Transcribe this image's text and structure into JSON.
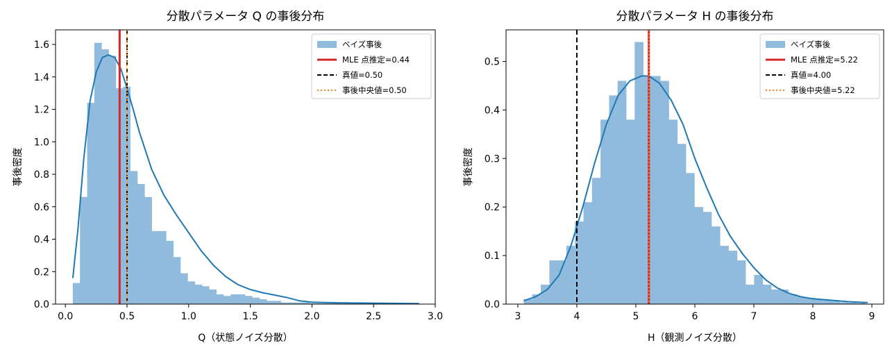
{
  "chart_data": [
    {
      "type": "bar",
      "title": "分散パラメータ Q の事後分布",
      "xlabel": "Q（状態ノイズ分散）",
      "ylabel": "事後密度",
      "xlim": [
        -0.08,
        3.0
      ],
      "ylim": [
        0,
        1.69
      ],
      "xticks": [
        0.0,
        0.5,
        1.0,
        1.5,
        2.0,
        2.5,
        3.0
      ],
      "xtick_labels": [
        "0.0",
        "0.5",
        "1.0",
        "1.5",
        "2.0",
        "2.5",
        "3.0"
      ],
      "yticks": [
        0,
        0.2,
        0.4,
        0.6,
        0.8,
        1.0,
        1.2,
        1.4,
        1.6
      ],
      "ytick_labels": [
        "0.0",
        "0.2",
        "0.4",
        "0.6",
        "0.8",
        "1.0",
        "1.2",
        "1.4",
        "1.6"
      ],
      "legend_position": "top-right",
      "bin_start": 0.06,
      "bin_width": 0.0582,
      "hist_values": [
        0.13,
        0.66,
        1.24,
        1.61,
        1.57,
        1.53,
        1.33,
        1.34,
        0.82,
        0.74,
        0.66,
        0.45,
        0.45,
        0.39,
        0.29,
        0.19,
        0.14,
        0.12,
        0.11,
        0.09,
        0.06,
        0.05,
        0.06,
        0.06,
        0.05,
        0.04,
        0.03,
        0.02,
        0.02,
        0.01,
        0.01,
        0.01,
        0.01,
        0.005,
        0.005,
        0.005,
        0.005,
        0.005,
        0.005,
        0.005,
        0.005,
        0.005,
        0.005,
        0.005,
        0.005,
        0.005,
        0.005,
        0.005
      ],
      "kde": {
        "x": [
          0.06,
          0.1,
          0.15,
          0.2,
          0.25,
          0.3,
          0.35,
          0.4,
          0.45,
          0.5,
          0.55,
          0.6,
          0.7,
          0.8,
          0.9,
          1.0,
          1.1,
          1.2,
          1.3,
          1.4,
          1.5,
          1.6,
          1.7,
          1.8,
          1.9,
          2.0,
          2.2,
          2.5,
          2.87
        ],
        "y": [
          0.16,
          0.45,
          0.9,
          1.25,
          1.43,
          1.52,
          1.535,
          1.52,
          1.45,
          1.33,
          1.2,
          1.06,
          0.83,
          0.67,
          0.55,
          0.44,
          0.33,
          0.24,
          0.17,
          0.12,
          0.09,
          0.07,
          0.055,
          0.04,
          0.02,
          0.012,
          0.008,
          0.006,
          0.003
        ]
      },
      "vlines": {
        "mle": 0.44,
        "true": 0.5,
        "median": 0.5
      },
      "colors": {
        "hist": "#90bbdc",
        "kde": "#1f77b4",
        "mle": "#d62728",
        "true": "#000000",
        "median": "#ff7f0e"
      },
      "legend": [
        "ベイズ事後",
        "MLE 点推定=0.44",
        "真値=0.50",
        "事後中央値=0.50"
      ]
    },
    {
      "type": "bar",
      "title": "分散パラメータ H の事後分布",
      "xlabel": "H（観測ノイズ分散）",
      "ylabel": "事後密度",
      "xlim": [
        2.8,
        9.2
      ],
      "ylim": [
        0,
        0.565
      ],
      "xticks": [
        3,
        4,
        5,
        6,
        7,
        8,
        9
      ],
      "xtick_labels": [
        "3",
        "4",
        "5",
        "6",
        "7",
        "8",
        "9"
      ],
      "yticks": [
        0,
        0.1,
        0.2,
        0.3,
        0.4,
        0.5
      ],
      "ytick_labels": [
        "0.0",
        "0.1",
        "0.2",
        "0.3",
        "0.4",
        "0.5"
      ],
      "legend_position": "top-right",
      "bin_start": 3.1,
      "bin_width": 0.1446,
      "hist_values": [
        0.01,
        0.02,
        0.04,
        0.09,
        0.09,
        0.12,
        0.17,
        0.21,
        0.26,
        0.38,
        0.43,
        0.46,
        0.38,
        0.54,
        0.47,
        0.47,
        0.46,
        0.38,
        0.33,
        0.27,
        0.2,
        0.19,
        0.16,
        0.12,
        0.11,
        0.09,
        0.04,
        0.06,
        0.04,
        0.03,
        0.03,
        0.02,
        0.015,
        0.013,
        0.01,
        0.008,
        0.006,
        0.004,
        0.003,
        0.002
      ],
      "kde": {
        "x": [
          3.1,
          3.3,
          3.5,
          3.7,
          3.9,
          4.1,
          4.3,
          4.5,
          4.7,
          4.9,
          5.1,
          5.22,
          5.4,
          5.6,
          5.8,
          6.0,
          6.2,
          6.4,
          6.6,
          6.8,
          7.0,
          7.2,
          7.4,
          7.6,
          7.8,
          8.0,
          8.3,
          8.6,
          8.93
        ],
        "y": [
          0.007,
          0.015,
          0.03,
          0.06,
          0.12,
          0.2,
          0.29,
          0.37,
          0.43,
          0.46,
          0.47,
          0.47,
          0.455,
          0.42,
          0.37,
          0.3,
          0.24,
          0.185,
          0.14,
          0.105,
          0.075,
          0.05,
          0.033,
          0.022,
          0.015,
          0.011,
          0.008,
          0.005,
          0.003
        ]
      },
      "vlines": {
        "mle": 5.22,
        "true": 4.0,
        "median": 5.22
      },
      "colors": {
        "hist": "#90bbdc",
        "kde": "#1f77b4",
        "mle": "#d62728",
        "true": "#000000",
        "median": "#ff7f0e"
      },
      "legend": [
        "ベイズ事後",
        "MLE 点推定=5.22",
        "真値=4.00",
        "事後中央値=5.22"
      ]
    }
  ]
}
